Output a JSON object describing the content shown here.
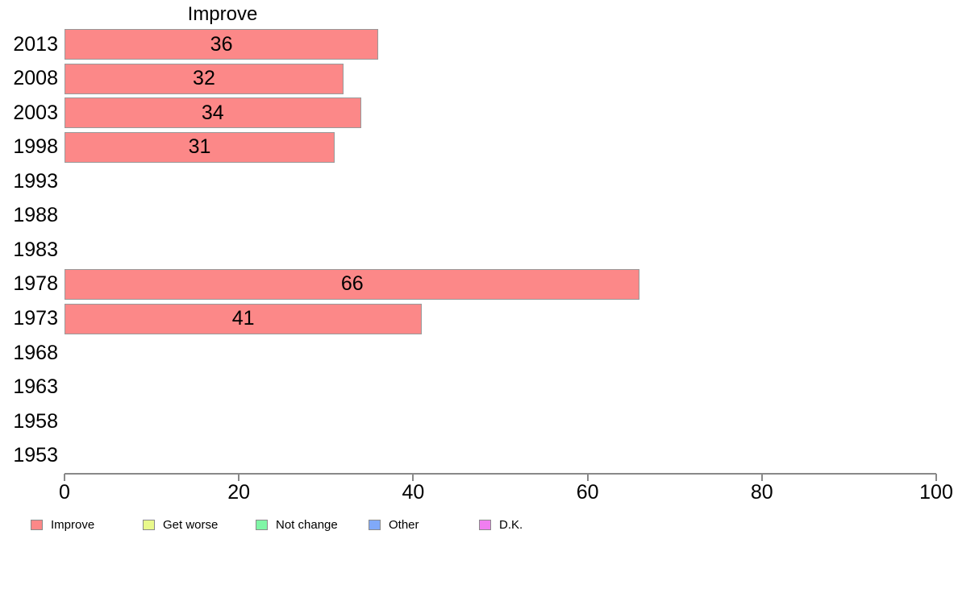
{
  "chart_data": {
    "type": "bar",
    "orientation": "horizontal",
    "title": "Improve",
    "categories": [
      "2013",
      "2008",
      "2003",
      "1998",
      "1993",
      "1988",
      "1983",
      "1978",
      "1973",
      "1968",
      "1963",
      "1958",
      "1953"
    ],
    "values": [
      36,
      32,
      34,
      31,
      null,
      null,
      null,
      66,
      41,
      null,
      null,
      null,
      null
    ],
    "bar_labels": [
      "36",
      "32",
      "34",
      "31",
      "",
      "",
      "",
      "66",
      "41",
      "",
      "",
      "",
      ""
    ],
    "xlim": [
      0,
      100
    ],
    "x_ticks": [
      "0",
      "20",
      "40",
      "60",
      "80",
      "100"
    ],
    "grid": false,
    "legend_position": "bottom",
    "colors": {
      "bar_fill": "#FC8888",
      "bar_border": "#999999",
      "axis": "#898989",
      "text": "#000000"
    },
    "legend": [
      {
        "label": "Improve",
        "color": "#FC8888"
      },
      {
        "label": "Get worse",
        "color": "#E9F98B"
      },
      {
        "label": "Not change",
        "color": "#80F6A6"
      },
      {
        "label": "Other",
        "color": "#80A9F9"
      },
      {
        "label": "D.K.",
        "color": "#F07EF0"
      }
    ]
  }
}
